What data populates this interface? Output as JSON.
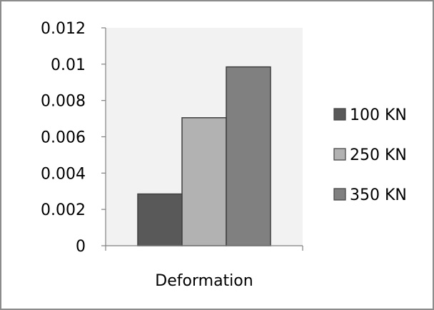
{
  "chart_data": {
    "type": "bar",
    "categories": [
      "Deformation"
    ],
    "series": [
      {
        "name": "100 KN",
        "values": [
          0.00285
        ],
        "color": "#595959"
      },
      {
        "name": "250 KN",
        "values": [
          0.00705
        ],
        "color": "#b2b2b2"
      },
      {
        "name": "350 KN",
        "values": [
          0.00985
        ],
        "color": "#808080"
      }
    ],
    "title": "",
    "xlabel": "",
    "ylabel": "",
    "ylim": [
      0,
      0.012
    ],
    "yticks": [
      0,
      0.002,
      0.004,
      0.006,
      0.008,
      0.01,
      0.012
    ],
    "ytick_labels": [
      "0",
      "0.002",
      "0.004",
      "0.006",
      "0.008",
      "0.01",
      "0.012"
    ],
    "grid": false,
    "plot_area_color": "#f2f2f2",
    "legend_position": "right"
  }
}
